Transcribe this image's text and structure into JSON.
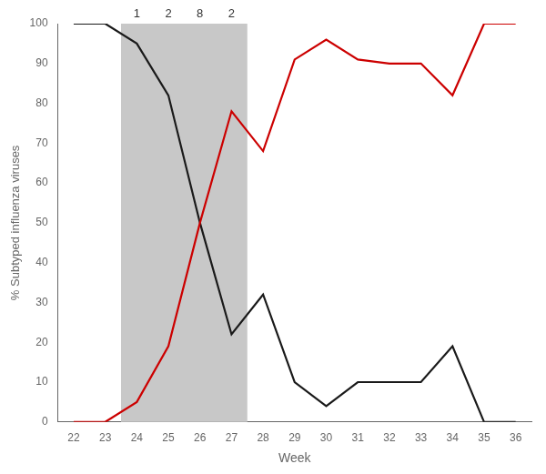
{
  "chart_data": {
    "type": "line",
    "x": [
      22,
      23,
      24,
      25,
      26,
      27,
      28,
      29,
      30,
      31,
      32,
      33,
      34,
      35,
      36
    ],
    "series": [
      {
        "color": "#cc0000",
        "values": [
          0,
          0,
          5,
          19,
          50,
          78,
          68,
          91,
          96,
          91,
          90,
          90,
          82,
          100,
          100
        ]
      },
      {
        "color": "#1a1a1a",
        "values": [
          100,
          100,
          95,
          82,
          50,
          22,
          32,
          10,
          4,
          10,
          10,
          10,
          19,
          0,
          0
        ]
      }
    ],
    "shaded_span": {
      "start": 23.5,
      "end": 27.5,
      "color": "#c8c8c8"
    },
    "annotations": [
      {
        "x": 24,
        "y": 100,
        "text": "1"
      },
      {
        "x": 25,
        "y": 100,
        "text": "2"
      },
      {
        "x": 26,
        "y": 100,
        "text": "8"
      },
      {
        "x": 27,
        "y": 100,
        "text": "2"
      }
    ],
    "x_label": "Week",
    "y_label": "% Subtyped influenza viruses",
    "xlim": [
      21.5,
      36.5
    ],
    "ylim": [
      0,
      100
    ],
    "xticks": [
      22,
      23,
      24,
      25,
      26,
      27,
      28,
      29,
      30,
      31,
      32,
      33,
      34,
      35,
      36
    ],
    "yticks": [
      0,
      10,
      20,
      30,
      40,
      50,
      60,
      70,
      80,
      90,
      100
    ],
    "grid": false
  }
}
